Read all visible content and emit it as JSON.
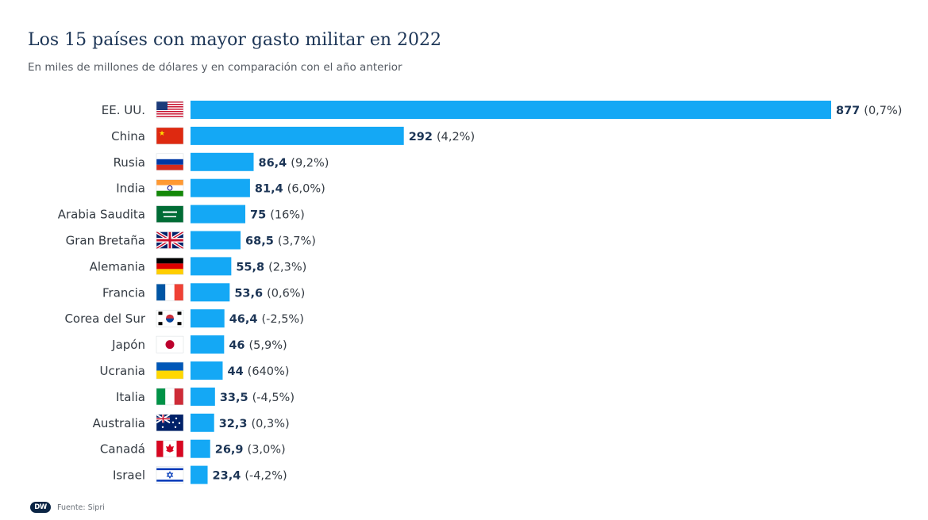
{
  "header": {
    "title": "Los 15 países con mayor gasto militar en 2022",
    "subtitle": "En miles de millones de dólares y en comparación con el año anterior"
  },
  "footer": {
    "logo_text": "DW",
    "source": "Fuente: Sipri"
  },
  "colors": {
    "bar": "#14a8f5",
    "value_text": "#1c3556",
    "label_text": "#333a42"
  },
  "chart_data": {
    "type": "bar",
    "orientation": "horizontal",
    "title": "Los 15 países con mayor gasto militar en 2022",
    "subtitle": "En miles de millones de dólares y en comparación con el año anterior",
    "xlabel": "",
    "ylabel": "",
    "grid": false,
    "legend": "none",
    "xlim": [
      0,
      877
    ],
    "categories": [
      "EE. UU.",
      "China",
      "Rusia",
      "India",
      "Arabia Saudita",
      "Gran Bretaña",
      "Alemania",
      "Francia",
      "Corea del Sur",
      "Japón",
      "Ucrania",
      "Italia",
      "Australia",
      "Canadá",
      "Israel"
    ],
    "flags": [
      "flag-usa-icon",
      "flag-china-icon",
      "flag-russia-icon",
      "flag-india-icon",
      "flag-saudi-arabia-icon",
      "flag-uk-icon",
      "flag-germany-icon",
      "flag-france-icon",
      "flag-south-korea-icon",
      "flag-japan-icon",
      "flag-ukraine-icon",
      "flag-italy-icon",
      "flag-australia-icon",
      "flag-canada-icon",
      "flag-israel-icon"
    ],
    "values": [
      877,
      292,
      86.4,
      81.4,
      75,
      68.5,
      55.8,
      53.6,
      46.4,
      46,
      44,
      33.5,
      32.3,
      26.9,
      23.4
    ],
    "value_labels": [
      "877",
      "292",
      "86,4",
      "81,4",
      "75",
      "68,5",
      "55,8",
      "53,6",
      "46,4",
      "46",
      "44",
      "33,5",
      "32,3",
      "26,9",
      "23,4"
    ],
    "change_labels": [
      "(0,7%)",
      "(4,2%)",
      "(9,2%)",
      "(6,0%)",
      "(16%)",
      "(3,7%)",
      "(2,3%)",
      "(0,6%)",
      "(-2,5%)",
      "(5,9%)",
      "(640%)",
      "(-4,5%)",
      "(0,3%)",
      "(3,0%)",
      "(-4,2%)"
    ],
    "change_percent": [
      0.7,
      4.2,
      9.2,
      6.0,
      16,
      3.7,
      2.3,
      0.6,
      -2.5,
      5.9,
      640,
      -4.5,
      0.3,
      3.0,
      -4.2
    ]
  }
}
